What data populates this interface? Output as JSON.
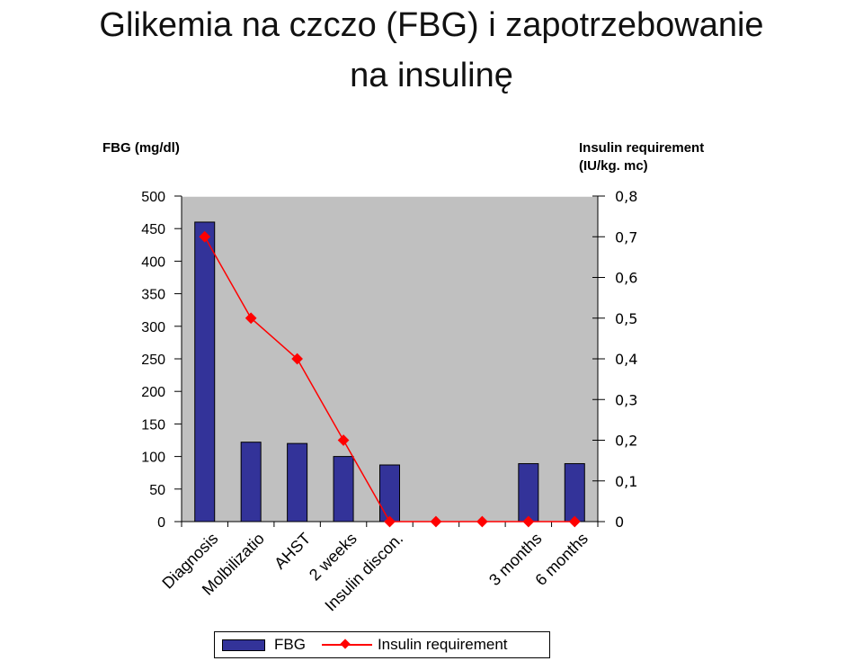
{
  "title_line1": "Glikemia na czczo (FBG) i zapotrzebowanie",
  "title_line2": "na insulinę",
  "chart_data": {
    "type": "bar",
    "categories": [
      "Diagnosis",
      "Mobilization",
      "AHST",
      "2 weeks",
      "Insulin discon.",
      "",
      "",
      "3 months",
      "6 months"
    ],
    "category_labels_shown": [
      "Diagnosis",
      "Molbilizatio",
      "AHST",
      "2 weeks",
      "Insulin discon.",
      "",
      "",
      "3 months",
      "6 months"
    ],
    "series": [
      {
        "name": "FBG",
        "type": "bar",
        "axis": "left",
        "color": "#333399",
        "values": [
          460,
          122,
          120,
          100,
          87,
          null,
          null,
          89,
          89
        ]
      },
      {
        "name": "Insulin requirement",
        "type": "line",
        "axis": "right",
        "color": "#ff0000",
        "values": [
          0.7,
          0.5,
          0.4,
          0.2,
          0,
          0,
          0,
          0,
          0
        ]
      }
    ],
    "y_left": {
      "label": "FBG (mg/dl)",
      "ylim": [
        0,
        500
      ],
      "ticks": [
        "0",
        "50",
        "100",
        "150",
        "200",
        "250",
        "300",
        "350",
        "400",
        "450",
        "500"
      ]
    },
    "y_right": {
      "label_line1": "Insulin requirement",
      "label_line2": "(IU/kg. mc)",
      "ylim": [
        0,
        0.8
      ],
      "ticks": [
        "0",
        "0,1",
        "0,2",
        "0,3",
        "0,4",
        "0,5",
        "0,6",
        "0,7",
        "0,8"
      ]
    },
    "plot_background": "#c0c0c0",
    "grid": false,
    "legend_position": "bottom"
  }
}
